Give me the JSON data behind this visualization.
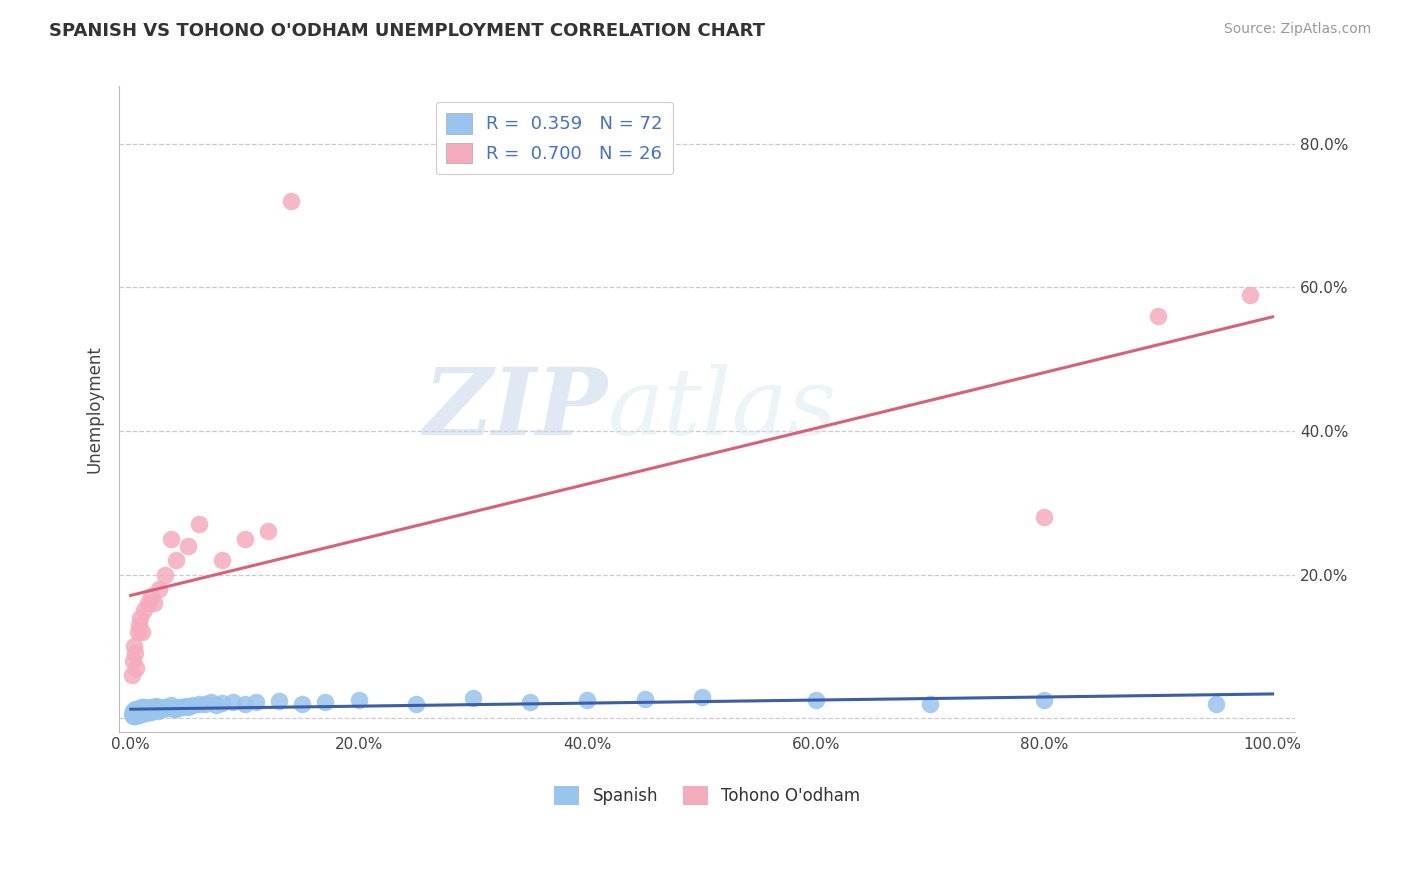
{
  "title": "SPANISH VS TOHONO O'ODHAM UNEMPLOYMENT CORRELATION CHART",
  "source": "Source: ZipAtlas.com",
  "ylabel": "Unemployment",
  "xlim": [
    -0.01,
    1.02
  ],
  "ylim": [
    -0.02,
    0.88
  ],
  "xticks": [
    0.0,
    0.2,
    0.4,
    0.6,
    0.8,
    1.0
  ],
  "xticklabels": [
    "0.0%",
    "20.0%",
    "40.0%",
    "60.0%",
    "80.0%",
    "100.0%"
  ],
  "yticks": [
    0.0,
    0.2,
    0.4,
    0.6,
    0.8
  ],
  "yticklabels": [
    "",
    "20.0%",
    "40.0%",
    "60.0%",
    "80.0%"
  ],
  "grid_color": "#cccccc",
  "background_color": "#ffffff",
  "blue_color": "#99C4ED",
  "pink_color": "#F5ABBE",
  "blue_line_color": "#3A5EA8",
  "pink_line_color": "#D9607A",
  "legend_text_color": "#4472C4",
  "R_blue": 0.359,
  "N_blue": 72,
  "R_pink": 0.7,
  "N_pink": 26,
  "blue_scatter_x": [
    0.001,
    0.002,
    0.002,
    0.003,
    0.003,
    0.004,
    0.004,
    0.004,
    0.005,
    0.005,
    0.005,
    0.006,
    0.006,
    0.007,
    0.007,
    0.007,
    0.008,
    0.008,
    0.009,
    0.009,
    0.01,
    0.01,
    0.011,
    0.011,
    0.012,
    0.012,
    0.013,
    0.014,
    0.015,
    0.016,
    0.017,
    0.018,
    0.019,
    0.02,
    0.021,
    0.022,
    0.024,
    0.025,
    0.027,
    0.028,
    0.03,
    0.032,
    0.035,
    0.037,
    0.04,
    0.042,
    0.045,
    0.048,
    0.05,
    0.055,
    0.06,
    0.065,
    0.07,
    0.075,
    0.08,
    0.09,
    0.1,
    0.11,
    0.13,
    0.15,
    0.17,
    0.2,
    0.25,
    0.3,
    0.35,
    0.4,
    0.45,
    0.5,
    0.6,
    0.7,
    0.8,
    0.95
  ],
  "blue_scatter_y": [
    0.005,
    0.01,
    0.003,
    0.008,
    0.004,
    0.012,
    0.003,
    0.007,
    0.01,
    0.004,
    0.008,
    0.006,
    0.011,
    0.013,
    0.004,
    0.009,
    0.011,
    0.006,
    0.015,
    0.005,
    0.012,
    0.007,
    0.013,
    0.008,
    0.01,
    0.016,
    0.007,
    0.012,
    0.014,
    0.01,
    0.016,
    0.009,
    0.013,
    0.015,
    0.011,
    0.017,
    0.01,
    0.014,
    0.016,
    0.012,
    0.014,
    0.015,
    0.018,
    0.012,
    0.013,
    0.016,
    0.015,
    0.017,
    0.016,
    0.018,
    0.02,
    0.019,
    0.022,
    0.018,
    0.021,
    0.023,
    0.02,
    0.022,
    0.024,
    0.02,
    0.023,
    0.025,
    0.02,
    0.028,
    0.022,
    0.025,
    0.026,
    0.03,
    0.025,
    0.02,
    0.025,
    0.02
  ],
  "pink_scatter_x": [
    0.001,
    0.002,
    0.003,
    0.004,
    0.005,
    0.006,
    0.007,
    0.008,
    0.01,
    0.012,
    0.015,
    0.018,
    0.02,
    0.025,
    0.03,
    0.035,
    0.04,
    0.05,
    0.06,
    0.08,
    0.1,
    0.12,
    0.14,
    0.8,
    0.9,
    0.98
  ],
  "pink_scatter_y": [
    0.06,
    0.08,
    0.1,
    0.09,
    0.07,
    0.12,
    0.13,
    0.14,
    0.12,
    0.15,
    0.16,
    0.17,
    0.16,
    0.18,
    0.2,
    0.25,
    0.22,
    0.24,
    0.27,
    0.22,
    0.25,
    0.26,
    0.72,
    0.28,
    0.56,
    0.59
  ]
}
